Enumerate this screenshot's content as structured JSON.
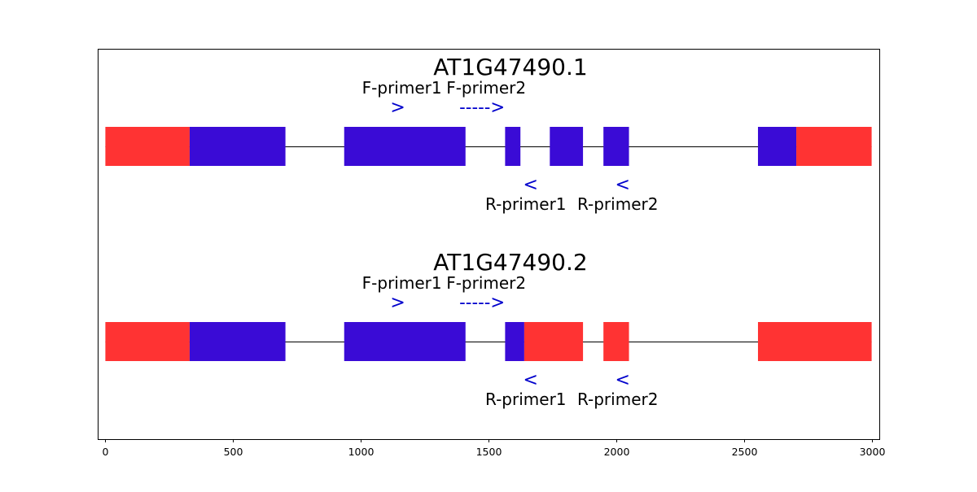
{
  "colors": {
    "utr": "#ff3333",
    "cds": "#3a0bd6",
    "primer": "#0000cc",
    "intron": "#000000"
  },
  "x_axis": {
    "range": [
      -30,
      3030
    ],
    "ticks": [
      {
        "value": 0,
        "label": "0"
      },
      {
        "value": 500,
        "label": "500"
      },
      {
        "value": 1000,
        "label": "1000"
      },
      {
        "value": 1500,
        "label": "1500"
      },
      {
        "value": 2000,
        "label": "2000"
      },
      {
        "value": 2500,
        "label": "2500"
      },
      {
        "value": 3000,
        "label": "3000"
      }
    ]
  },
  "transcripts": [
    {
      "name": "AT1G47490.1",
      "intron_span": [
        0,
        3000
      ],
      "segments": [
        {
          "start": 0,
          "end": 330,
          "type": "utr"
        },
        {
          "start": 330,
          "end": 705,
          "type": "cds"
        },
        {
          "start": 935,
          "end": 1410,
          "type": "cds"
        },
        {
          "start": 1565,
          "end": 1625,
          "type": "cds"
        },
        {
          "start": 1740,
          "end": 1870,
          "type": "cds"
        },
        {
          "start": 1950,
          "end": 2050,
          "type": "cds"
        },
        {
          "start": 2555,
          "end": 2705,
          "type": "cds"
        },
        {
          "start": 2705,
          "end": 3000,
          "type": "utr"
        }
      ],
      "primers": [
        {
          "label": "F-primer1",
          "arrow": ">",
          "strand": "forward",
          "pos": 1145
        },
        {
          "label": "F-primer2",
          "arrow": "----->",
          "strand": "forward",
          "pos": 1475
        },
        {
          "label": "R-primer1",
          "arrow": "<",
          "strand": "reverse",
          "pos": 1665
        },
        {
          "label": "R-primer2",
          "arrow": "<",
          "strand": "reverse",
          "pos": 2025
        }
      ]
    },
    {
      "name": "AT1G47490.2",
      "intron_span": [
        0,
        3000
      ],
      "segments": [
        {
          "start": 0,
          "end": 330,
          "type": "utr"
        },
        {
          "start": 330,
          "end": 705,
          "type": "cds"
        },
        {
          "start": 935,
          "end": 1410,
          "type": "cds"
        },
        {
          "start": 1565,
          "end": 1640,
          "type": "cds"
        },
        {
          "start": 1640,
          "end": 1870,
          "type": "utr"
        },
        {
          "start": 1950,
          "end": 2050,
          "type": "utr"
        },
        {
          "start": 2555,
          "end": 3000,
          "type": "utr"
        }
      ],
      "primers": [
        {
          "label": "F-primer1",
          "arrow": ">",
          "strand": "forward",
          "pos": 1145
        },
        {
          "label": "F-primer2",
          "arrow": "----->",
          "strand": "forward",
          "pos": 1475
        },
        {
          "label": "R-primer1",
          "arrow": "<",
          "strand": "reverse",
          "pos": 1665
        },
        {
          "label": "R-primer2",
          "arrow": "<",
          "strand": "reverse",
          "pos": 2025
        }
      ]
    }
  ]
}
